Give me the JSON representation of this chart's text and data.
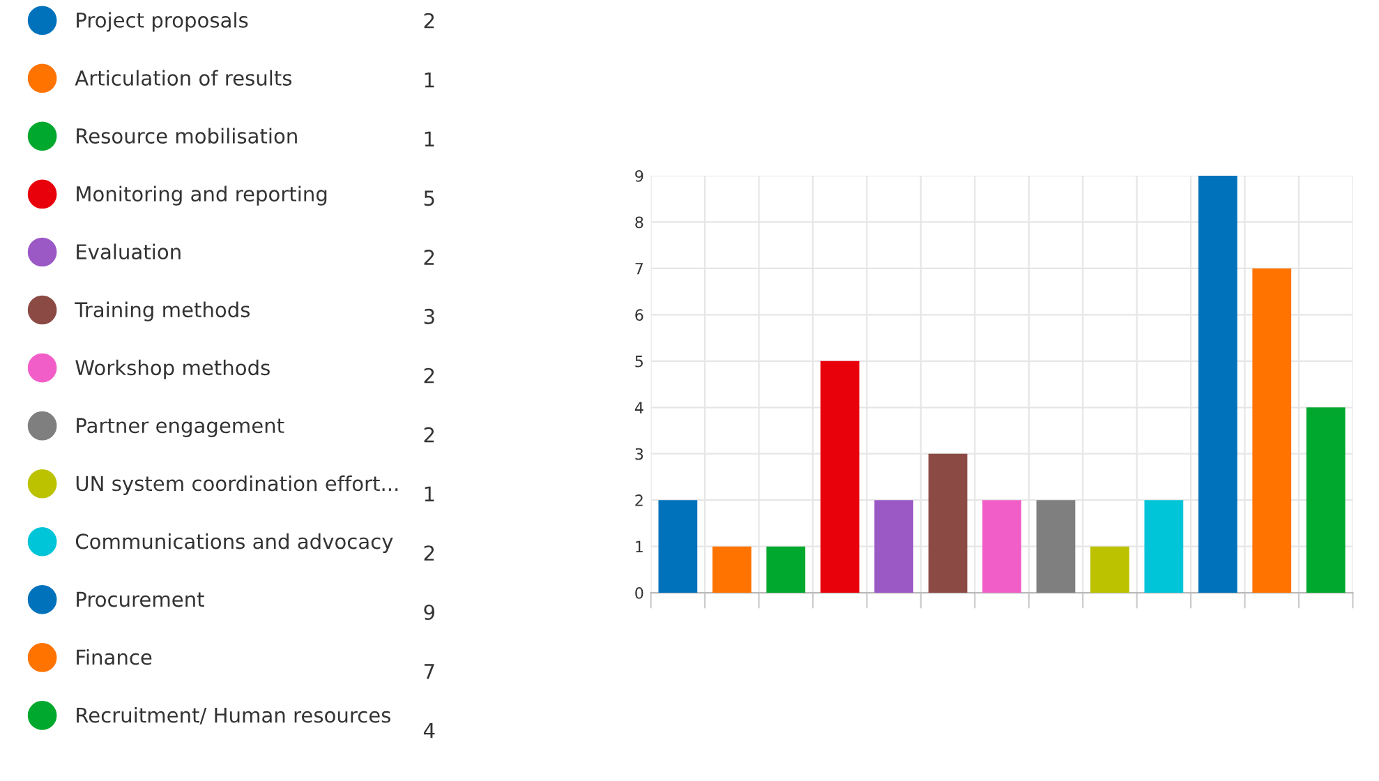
{
  "chart_data": {
    "type": "bar",
    "categories": [
      null,
      null,
      null,
      null,
      null,
      null,
      null,
      null,
      null,
      null,
      null,
      null,
      null
    ],
    "series": [
      {
        "name": "Project proposals",
        "color": "#0072bc",
        "values": [
          2,
          null,
          null,
          null,
          null,
          null,
          null,
          null,
          null,
          null,
          null,
          null,
          null
        ]
      },
      {
        "name": "Articulation of results",
        "color": "#ff7300",
        "values": [
          null,
          1,
          null,
          null,
          null,
          null,
          null,
          null,
          null,
          null,
          null,
          null,
          null
        ]
      },
      {
        "name": "Resource mobilisation",
        "color": "#00a82d",
        "values": [
          null,
          null,
          1,
          null,
          null,
          null,
          null,
          null,
          null,
          null,
          null,
          null,
          null
        ]
      },
      {
        "name": "Monitoring and reporting",
        "color": "#e8000b",
        "values": [
          null,
          null,
          null,
          5,
          null,
          null,
          null,
          null,
          null,
          null,
          null,
          null,
          null
        ]
      },
      {
        "name": "Evaluation",
        "color": "#9b59c6",
        "values": [
          null,
          null,
          null,
          null,
          2,
          null,
          null,
          null,
          null,
          null,
          null,
          null,
          null
        ]
      },
      {
        "name": "Training methods",
        "color": "#8c4a45",
        "values": [
          null,
          null,
          null,
          null,
          null,
          3,
          null,
          null,
          null,
          null,
          null,
          null,
          null
        ]
      },
      {
        "name": "Workshop methods",
        "color": "#f25ec8",
        "values": [
          null,
          null,
          null,
          null,
          null,
          null,
          2,
          null,
          null,
          null,
          null,
          null,
          null
        ]
      },
      {
        "name": "Partner engagement",
        "color": "#7f7f7f",
        "values": [
          null,
          null,
          null,
          null,
          null,
          null,
          null,
          2,
          null,
          null,
          null,
          null,
          null
        ]
      },
      {
        "name": "UN system coordination effort...",
        "color": "#bcc200",
        "values": [
          null,
          null,
          null,
          null,
          null,
          null,
          null,
          null,
          1,
          null,
          null,
          null,
          null
        ]
      },
      {
        "name": "Communications and advocacy",
        "color": "#00c4d8",
        "values": [
          null,
          null,
          null,
          null,
          null,
          null,
          null,
          null,
          null,
          2,
          null,
          null,
          null
        ]
      },
      {
        "name": "Procurement",
        "color": "#0072bc",
        "values": [
          null,
          null,
          null,
          null,
          null,
          null,
          null,
          null,
          null,
          null,
          9,
          null,
          null
        ]
      },
      {
        "name": "Finance",
        "color": "#ff7300",
        "values": [
          null,
          null,
          null,
          null,
          null,
          null,
          null,
          null,
          null,
          null,
          null,
          7,
          null
        ]
      },
      {
        "name": "Recruitment/ Human resources",
        "color": "#00a82d",
        "values": [
          null,
          null,
          null,
          null,
          null,
          null,
          null,
          null,
          null,
          null,
          null,
          null,
          4
        ]
      }
    ],
    "annotations": [
      "2",
      "1",
      "1",
      "5",
      "2",
      "3",
      "2",
      "2",
      "1",
      "2",
      "9",
      "7",
      "4"
    ],
    "ylim": [
      0,
      9
    ],
    "yticks": [
      0,
      1,
      2,
      3,
      4,
      5,
      6,
      7,
      8,
      9
    ],
    "grid": true,
    "legend": "left",
    "tick_labels": "y"
  }
}
